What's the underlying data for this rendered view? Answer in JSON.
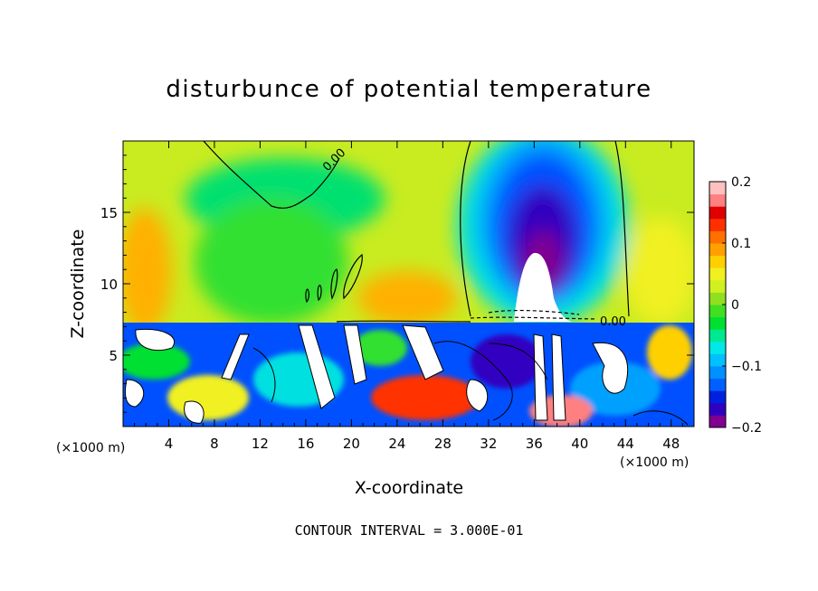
{
  "chart_data": {
    "type": "heatmap",
    "title": "disturbunce of potential temperature",
    "xlabel": "X-coordinate",
    "ylabel": "Z-coordinate",
    "x_unit": "(×1000 m)",
    "z_unit": "(×1000 m)",
    "xlim": [
      0,
      50
    ],
    "ylim": [
      0,
      20
    ],
    "x_ticks": [
      4,
      8,
      12,
      16,
      20,
      24,
      28,
      32,
      36,
      40,
      44,
      48
    ],
    "y_ticks": [
      5,
      10,
      15
    ],
    "colorbar": {
      "range": [
        -0.2,
        0.2
      ],
      "tick_values": [
        0.2,
        0.1,
        0,
        -0.1,
        -0.2
      ],
      "tick_labels": [
        "0.2",
        "0.1",
        "0",
        "−0.1",
        "−0.2"
      ],
      "colors": [
        "#800090",
        "#3000c0",
        "#0020e0",
        "#0060ff",
        "#0090ff",
        "#00c0ff",
        "#00e8e8",
        "#00e890",
        "#00e030",
        "#40e020",
        "#90e020",
        "#d0f020",
        "#f0f020",
        "#ffd000",
        "#ffa000",
        "#ff7000",
        "#ff3000",
        "#e00000",
        "#ff8080",
        "#ffc0c0"
      ]
    },
    "contour_labels": [
      "0.00",
      "0.00"
    ],
    "contour_interval_text": "CONTOUR INTERVAL = 3.000E-01"
  }
}
